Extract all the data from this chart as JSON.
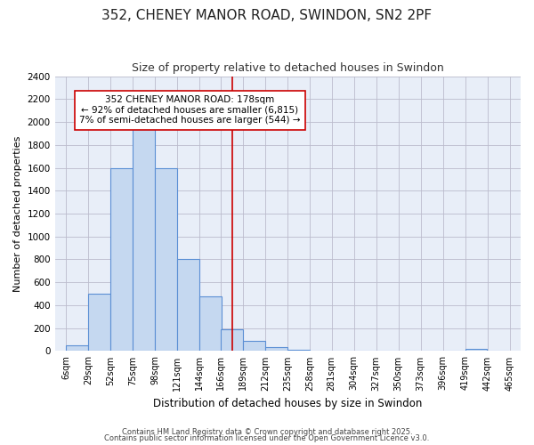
{
  "title1": "352, CHENEY MANOR ROAD, SWINDON, SN2 2PF",
  "title2": "Size of property relative to detached houses in Swindon",
  "xlabel": "Distribution of detached houses by size in Swindon",
  "ylabel": "Number of detached properties",
  "bin_edges": [
    6,
    29,
    52,
    75,
    98,
    121,
    144,
    166,
    189,
    212,
    235,
    258,
    281,
    304,
    327,
    350,
    373,
    396,
    419,
    442,
    465
  ],
  "bar_heights": [
    50,
    500,
    1600,
    1980,
    1600,
    800,
    480,
    190,
    90,
    35,
    15,
    0,
    0,
    0,
    0,
    0,
    0,
    0,
    20,
    0
  ],
  "bar_color": "#c5d8f0",
  "bar_edge_color": "#5b8fd4",
  "bar_linewidth": 0.8,
  "vline_x": 178,
  "vline_color": "#cc0000",
  "ylim": [
    0,
    2400
  ],
  "yticks": [
    0,
    200,
    400,
    600,
    800,
    1000,
    1200,
    1400,
    1600,
    1800,
    2000,
    2200,
    2400
  ],
  "annotation_title": "352 CHENEY MANOR ROAD: 178sqm",
  "annotation_line1": "← 92% of detached houses are smaller (6,815)",
  "annotation_line2": "7% of semi-detached houses are larger (544) →",
  "annotation_box_color": "#ffffff",
  "annotation_box_edge": "#cc0000",
  "grid_color": "#bbbbcc",
  "bg_color": "#ffffff",
  "plot_bg_color": "#e8eef8",
  "footer1": "Contains HM Land Registry data © Crown copyright and database right 2025.",
  "footer2": "Contains public sector information licensed under the Open Government Licence v3.0.",
  "tick_labels": [
    "6sqm",
    "29sqm",
    "52sqm",
    "75sqm",
    "98sqm",
    "121sqm",
    "144sqm",
    "166sqm",
    "189sqm",
    "212sqm",
    "235sqm",
    "258sqm",
    "281sqm",
    "304sqm",
    "327sqm",
    "350sqm",
    "373sqm",
    "396sqm",
    "419sqm",
    "442sqm",
    "465sqm"
  ]
}
